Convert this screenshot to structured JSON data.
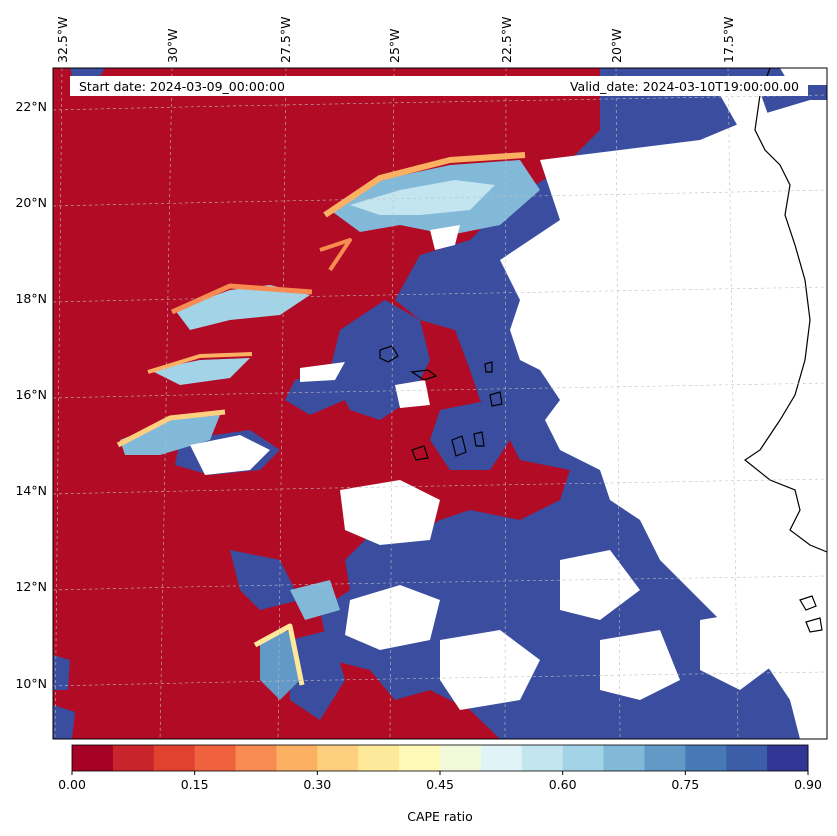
{
  "header": {
    "start_label": "Start date: 2024-03-09_00:00:00",
    "valid_label": "Valid_date: 2024-03-10T19:00:00.00"
  },
  "map": {
    "lon_ticks": [
      "32.5°W",
      "30°W",
      "27.5°W",
      "25°W",
      "22.5°W",
      "20°W",
      "17.5°W"
    ],
    "lat_ticks": [
      "22°N",
      "20°N",
      "18°N",
      "16°N",
      "14°N",
      "12°N",
      "10°N"
    ],
    "colors": {
      "low": "#b10b26",
      "high": "#3a4d9f",
      "missing": "#ffffff",
      "coast": "#000000"
    }
  },
  "colorbar": {
    "label": "CAPE ratio",
    "ticks": [
      "0.00",
      "0.15",
      "0.30",
      "0.45",
      "0.60",
      "0.75",
      "0.90"
    ],
    "colors": [
      "#a50026",
      "#c9242b",
      "#e0422f",
      "#f0623e",
      "#f88b51",
      "#fcb062",
      "#fecf7e",
      "#fee89a",
      "#fffab8",
      "#f2f9db",
      "#e0f3f6",
      "#c3e5f0",
      "#a3d3e6",
      "#82b9d8",
      "#6399c7",
      "#4679b5",
      "#3c5ea8",
      "#313695"
    ]
  }
}
